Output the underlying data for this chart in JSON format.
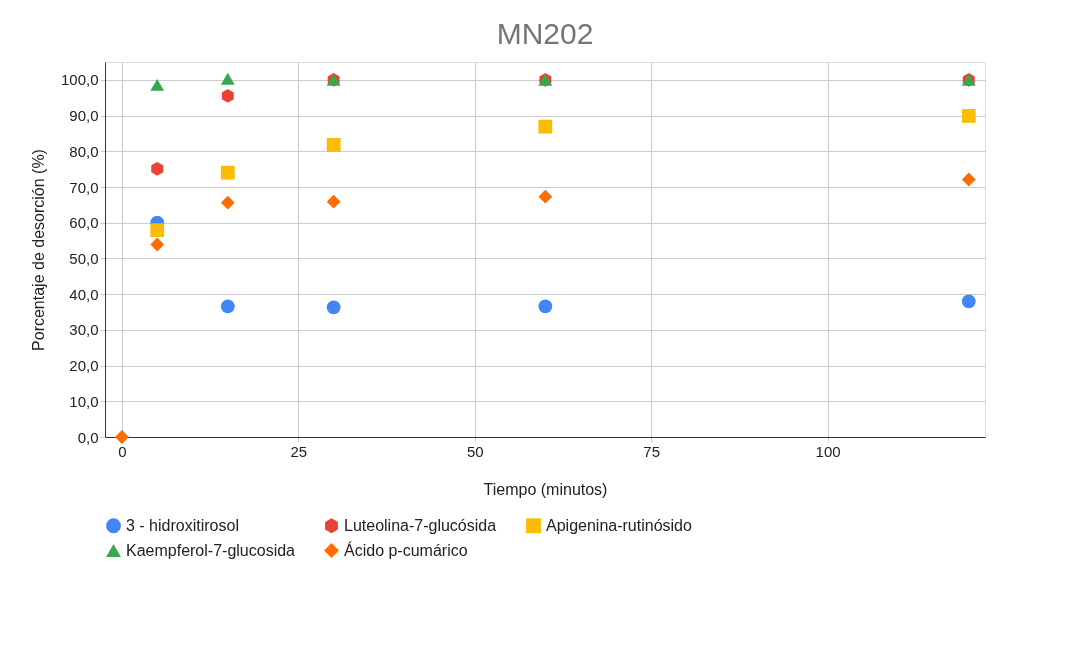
{
  "chart_data": {
    "type": "scatter",
    "title": "MN202",
    "xlabel": "Tiempo (minutos)",
    "ylabel": "Porcentaje de desorción (%)",
    "x": [
      0,
      5,
      15,
      30,
      60,
      120
    ],
    "xlim": [
      -2.4,
      122.3
    ],
    "xticks": [
      0,
      25,
      50,
      75,
      100
    ],
    "ylim": [
      0,
      105
    ],
    "yticks": [
      {
        "value": 0,
        "label": "0,0"
      },
      {
        "value": 10,
        "label": "10,0"
      },
      {
        "value": 20,
        "label": "20,0"
      },
      {
        "value": 30,
        "label": "30,0"
      },
      {
        "value": 40,
        "label": "40,0"
      },
      {
        "value": 50,
        "label": "50,0"
      },
      {
        "value": 60,
        "label": "60,0"
      },
      {
        "value": 70,
        "label": "70,0"
      },
      {
        "value": 80,
        "label": "80,0"
      },
      {
        "value": 90,
        "label": "90,0"
      },
      {
        "value": 100,
        "label": "100,0"
      }
    ],
    "grid": true,
    "legend": "bottom",
    "series": [
      {
        "name": "3 - hidroxitirosol",
        "color": "#4285f4",
        "marker": "circle",
        "values": [
          null,
          60,
          36.6,
          36.3,
          36.6,
          38
        ]
      },
      {
        "name": "Luteolina-7-glucósida",
        "color": "#ea4335",
        "values": [
          null,
          75.1,
          95.5,
          100,
          100,
          100
        ]
      },
      {
        "name": "Apigenina-rutinósido",
        "color": "#fbbc04",
        "marker": "square",
        "values": [
          null,
          57.9,
          74,
          81.8,
          86.9,
          89.9
        ]
      },
      {
        "name": "Kaempferol-7-glucosida",
        "color": "#34a853",
        "marker": "triangle",
        "values": [
          null,
          98.6,
          100.3,
          100,
          100,
          100
        ]
      },
      {
        "name": "Ácido p-cumárico",
        "color": "#ff6d01",
        "marker": "diamond",
        "values": [
          0,
          53.9,
          65.6,
          65.9,
          67.3,
          72.1
        ]
      }
    ]
  }
}
